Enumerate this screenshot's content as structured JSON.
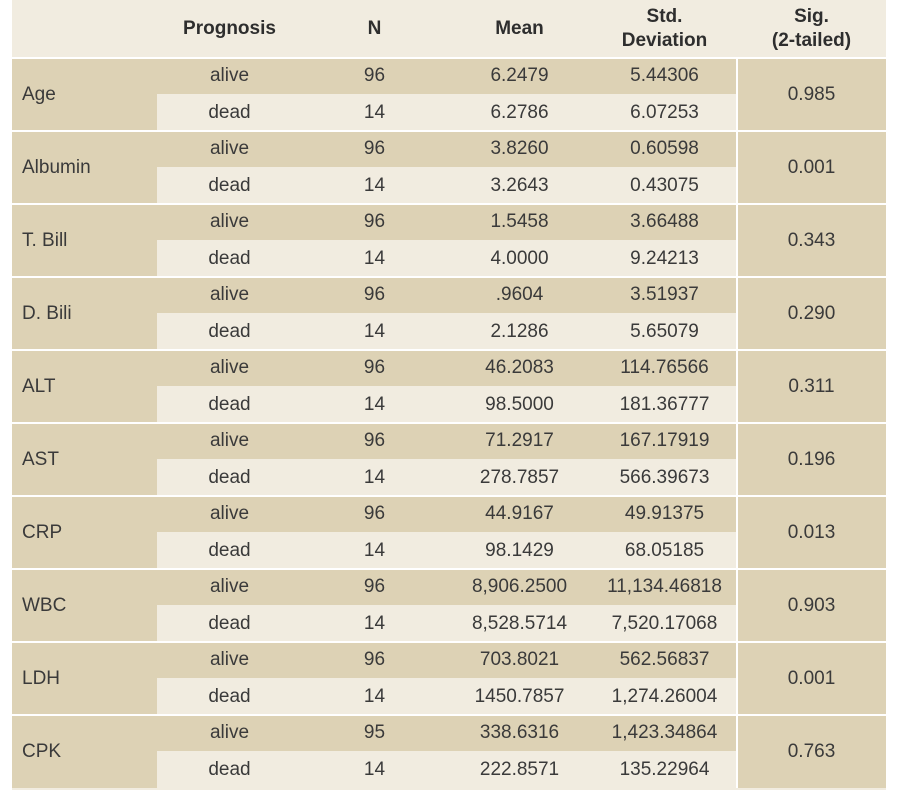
{
  "header": {
    "col_param": "",
    "col_prognosis": "Prognosis",
    "col_n": "N",
    "col_mean": "Mean",
    "col_std_line1": "Std.",
    "col_std_line2": "Deviation",
    "col_sig_line1": "Sig.",
    "col_sig_line2": "(2-tailed)"
  },
  "rows": [
    {
      "param": "Age",
      "sig": "0.985",
      "alive": {
        "prognosis": "alive",
        "n": "96",
        "mean": "6.2479",
        "std": "5.44306"
      },
      "dead": {
        "prognosis": "dead",
        "n": "14",
        "mean": "6.2786",
        "std": "6.07253"
      }
    },
    {
      "param": "Albumin",
      "sig": "0.001",
      "alive": {
        "prognosis": "alive",
        "n": "96",
        "mean": "3.8260",
        "std": "0.60598"
      },
      "dead": {
        "prognosis": "dead",
        "n": "14",
        "mean": "3.2643",
        "std": "0.43075"
      }
    },
    {
      "param": "T. Bill",
      "sig": "0.343",
      "alive": {
        "prognosis": "alive",
        "n": "96",
        "mean": "1.5458",
        "std": "3.66488"
      },
      "dead": {
        "prognosis": "dead",
        "n": "14",
        "mean": "4.0000",
        "std": "9.24213"
      }
    },
    {
      "param": "D. Bili",
      "sig": "0.290",
      "alive": {
        "prognosis": "alive",
        "n": "96",
        "mean": ".9604",
        "std": "3.51937"
      },
      "dead": {
        "prognosis": "dead",
        "n": "14",
        "mean": "2.1286",
        "std": "5.65079"
      }
    },
    {
      "param": "ALT",
      "sig": "0.311",
      "alive": {
        "prognosis": "alive",
        "n": "96",
        "mean": "46.2083",
        "std": "114.76566"
      },
      "dead": {
        "prognosis": "dead",
        "n": "14",
        "mean": "98.5000",
        "std": "181.36777"
      }
    },
    {
      "param": "AST",
      "sig": "0.196",
      "alive": {
        "prognosis": "alive",
        "n": "96",
        "mean": "71.2917",
        "std": "167.17919"
      },
      "dead": {
        "prognosis": "dead",
        "n": "14",
        "mean": "278.7857",
        "std": "566.39673"
      }
    },
    {
      "param": "CRP",
      "sig": "0.013",
      "alive": {
        "prognosis": "alive",
        "n": "96",
        "mean": "44.9167",
        "std": "49.91375"
      },
      "dead": {
        "prognosis": "dead",
        "n": "14",
        "mean": "98.1429",
        "std": "68.05185"
      }
    },
    {
      "param": "WBC",
      "sig": "0.903",
      "alive": {
        "prognosis": "alive",
        "n": "96",
        "mean": "8,906.2500",
        "std": "11,134.46818"
      },
      "dead": {
        "prognosis": "dead",
        "n": "14",
        "mean": "8,528.5714",
        "std": "7,520.17068"
      }
    },
    {
      "param": "LDH",
      "sig": "0.001",
      "alive": {
        "prognosis": "alive",
        "n": "96",
        "mean": "703.8021",
        "std": "562.56837"
      },
      "dead": {
        "prognosis": "dead",
        "n": "14",
        "mean": "1450.7857",
        "std": "1,274.26004"
      }
    },
    {
      "param": "CPK",
      "sig": "0.763",
      "alive": {
        "prognosis": "alive",
        "n": "95",
        "mean": "338.6316",
        "std": "1,423.34864"
      },
      "dead": {
        "prognosis": "dead",
        "n": "14",
        "mean": "222.8571",
        "std": "135.22964"
      }
    }
  ],
  "colors": {
    "band": "#ddd2b5",
    "light": "#f1ece0",
    "text": "#3a3a3a"
  }
}
